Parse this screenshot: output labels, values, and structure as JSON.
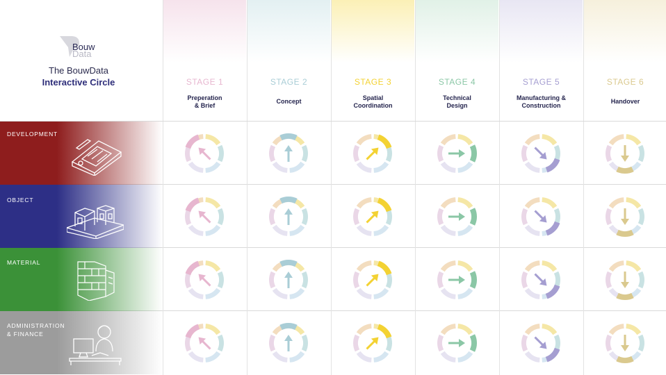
{
  "brand": {
    "logo_word1": "Bouw",
    "logo_word2": "Data",
    "title_line1": "The BouwData",
    "title_line2": "Interactive Circle"
  },
  "stages": [
    {
      "number": "STAGE 1",
      "name_line1": "Preperation",
      "name_line2": "& Brief",
      "color": "#e7b6cf",
      "tint": "#f6e3ec",
      "arrow_angle": 135
    },
    {
      "number": "STAGE 2",
      "name_line1": "",
      "name_line2": "Concept",
      "color": "#a9cdd6",
      "tint": "#e3f0f2",
      "arrow_angle": 90
    },
    {
      "number": "STAGE 3",
      "name_line1": "Spatial",
      "name_line2": "Coordination",
      "color": "#f3d233",
      "tint": "#fbf0b6",
      "arrow_angle": 45
    },
    {
      "number": "STAGE 4",
      "name_line1": "Technical",
      "name_line2": "Design",
      "color": "#8bc7a6",
      "tint": "#e1f1e7",
      "arrow_angle": 0
    },
    {
      "number": "STAGE 5",
      "name_line1": "Manufacturing &",
      "name_line2": "Construction",
      "color": "#a59ed1",
      "tint": "#e8e6f3",
      "arrow_angle": -45
    },
    {
      "number": "STAGE 6",
      "name_line1": "",
      "name_line2": "Handover",
      "color": "#dac98e",
      "tint": "#f6f0dc",
      "arrow_angle": -90
    }
  ],
  "rows": [
    {
      "line1": "DEVELOPMENT",
      "line2": "",
      "color": "#8e1d1d",
      "illustration": "blueprint-icon"
    },
    {
      "line1": "OBJECT",
      "line2": "",
      "color": "#2d2f86",
      "illustration": "building-blocks-icon"
    },
    {
      "line1": "MATERIAL",
      "line2": "",
      "color": "#3b9138",
      "illustration": "brick-wall-icon"
    },
    {
      "line1": "ADMINISTRATION",
      "line2": "& FINANCE",
      "color": "#9c9c9c",
      "illustration": "office-worker-icon"
    }
  ],
  "ring_colors": [
    "#f5e7a6",
    "#c9e2e3",
    "#d6e6f1",
    "#e6e3f1",
    "#ead7e7",
    "#f3ddbf"
  ]
}
